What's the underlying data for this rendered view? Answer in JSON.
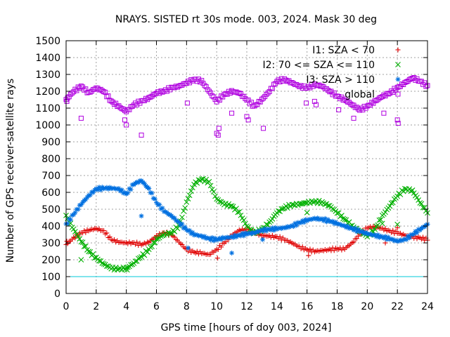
{
  "chart_data": {
    "type": "scatter",
    "title": "NRAYS. SISTED rt 30s mode. 003, 2024. Mask 30 deg",
    "xlabel": "GPS time [hours of doy 003, 2024]",
    "ylabel": "Number of GPS receiver-satellite rays",
    "xlim": [
      0,
      24
    ],
    "ylim": [
      0,
      1500
    ],
    "xticks": [
      "0",
      "2",
      "4",
      "6",
      "8",
      "10",
      "12",
      "14",
      "16",
      "18",
      "20",
      "22",
      "24"
    ],
    "yticks": [
      "0",
      "100",
      "200",
      "300",
      "400",
      "500",
      "600",
      "700",
      "800",
      "900",
      "1000",
      "1100",
      "1200",
      "1300",
      "1400",
      "1500"
    ],
    "grid": true,
    "legend_position": "top-right",
    "reference_line": {
      "y": 100,
      "color": "#00c8d8"
    },
    "series": [
      {
        "name": "I1: SZA < 70",
        "color": "#e00000",
        "marker": "+",
        "x": [
          0,
          0.5,
          1,
          1.5,
          2,
          2.5,
          3,
          3.5,
          4,
          4.5,
          5,
          5.5,
          6,
          6.5,
          7,
          7.5,
          8,
          8.5,
          9,
          9.5,
          10,
          10.5,
          11,
          11.5,
          12,
          12.5,
          13,
          13.5,
          14,
          14.5,
          15,
          15.5,
          16,
          16.5,
          17,
          17.5,
          18,
          18.5,
          19,
          19.5,
          20,
          20.5,
          21,
          21.5,
          22,
          22.5,
          23,
          23.5,
          24
        ],
        "y": [
          290,
          330,
          360,
          375,
          385,
          370,
          320,
          305,
          300,
          300,
          290,
          305,
          340,
          360,
          350,
          305,
          260,
          245,
          240,
          230,
          260,
          300,
          345,
          375,
          380,
          360,
          345,
          340,
          335,
          320,
          300,
          275,
          260,
          250,
          255,
          260,
          265,
          265,
          300,
          350,
          390,
          395,
          385,
          370,
          360,
          345,
          335,
          330,
          320
        ],
        "outliers_x": [
          0.05,
          10.05,
          16.1,
          21.2,
          22.0
        ],
        "outliers_y": [
          310,
          210,
          225,
          300,
          390
        ]
      },
      {
        "name": "I2: 70 <= SZA <= 110",
        "color": "#00b000",
        "marker": "x",
        "x": [
          0,
          0.5,
          1,
          1.5,
          2,
          2.5,
          3,
          3.5,
          4,
          4.5,
          5,
          5.5,
          6,
          6.5,
          7,
          7.5,
          8,
          8.5,
          9,
          9.5,
          10,
          10.5,
          11,
          11.5,
          12,
          12.5,
          13,
          13.5,
          14,
          14.5,
          15,
          15.5,
          16,
          16.5,
          17,
          17.5,
          18,
          18.5,
          19,
          19.5,
          20,
          20.5,
          21,
          21.5,
          22,
          22.5,
          23,
          23.5,
          24
        ],
        "y": [
          460,
          380,
          310,
          250,
          210,
          175,
          150,
          145,
          150,
          180,
          220,
          260,
          320,
          350,
          360,
          400,
          540,
          650,
          680,
          660,
          560,
          530,
          520,
          480,
          400,
          360,
          380,
          420,
          480,
          510,
          525,
          530,
          540,
          545,
          540,
          520,
          480,
          440,
          400,
          370,
          340,
          380,
          460,
          520,
          580,
          620,
          610,
          540,
          480
        ],
        "outliers_x": [
          1.0,
          4.05,
          16.0,
          21.0,
          22.0
        ],
        "outliers_y": [
          200,
          140,
          480,
          415,
          410
        ]
      },
      {
        "name": "I3: SZA > 110",
        "color": "#0070e0",
        "marker": "*",
        "x": [
          0,
          0.5,
          1,
          1.5,
          2,
          2.5,
          3,
          3.5,
          4,
          4.5,
          5,
          5.5,
          6,
          6.5,
          7,
          7.5,
          8,
          8.5,
          9,
          9.5,
          10,
          10.5,
          11,
          11.5,
          12,
          12.5,
          13,
          13.5,
          14,
          14.5,
          15,
          15.5,
          16,
          16.5,
          17,
          17.5,
          18,
          18.5,
          19,
          19.5,
          20,
          20.5,
          21,
          21.5,
          22,
          22.5,
          23,
          23.5,
          24
        ],
        "y": [
          410,
          470,
          530,
          580,
          620,
          625,
          625,
          620,
          590,
          650,
          670,
          620,
          540,
          490,
          460,
          420,
          380,
          350,
          340,
          325,
          320,
          330,
          335,
          345,
          355,
          360,
          375,
          380,
          385,
          390,
          400,
          420,
          435,
          445,
          440,
          430,
          415,
          400,
          385,
          370,
          355,
          345,
          335,
          325,
          310,
          320,
          350,
          380,
          410
        ],
        "outliers_x": [
          5.0,
          8.1,
          11.0,
          13.05
        ],
        "outliers_y": [
          460,
          270,
          240,
          320
        ]
      },
      {
        "name": "global",
        "color": "#b000e0",
        "marker": "square",
        "x": [
          0,
          0.5,
          1,
          1.5,
          2,
          2.5,
          3,
          3.5,
          4,
          4.5,
          5,
          5.5,
          6,
          6.5,
          7,
          7.5,
          8,
          8.5,
          9,
          9.5,
          10,
          10.5,
          11,
          11.5,
          12,
          12.5,
          13,
          13.5,
          14,
          14.5,
          15,
          15.5,
          16,
          16.5,
          17,
          17.5,
          18,
          18.5,
          19,
          19.5,
          20,
          20.5,
          21,
          21.5,
          22,
          22.5,
          23,
          23.5,
          24
        ],
        "y": [
          1150,
          1200,
          1230,
          1190,
          1220,
          1200,
          1140,
          1110,
          1080,
          1120,
          1140,
          1160,
          1190,
          1200,
          1220,
          1230,
          1250,
          1270,
          1260,
          1200,
          1140,
          1180,
          1200,
          1190,
          1150,
          1110,
          1150,
          1200,
          1260,
          1270,
          1250,
          1230,
          1220,
          1240,
          1230,
          1200,
          1170,
          1150,
          1120,
          1090,
          1110,
          1140,
          1170,
          1190,
          1220,
          1250,
          1280,
          1260,
          1230
        ],
        "outliers_x": [
          0.05,
          1.0,
          3.9,
          4.0,
          5.0,
          8.05,
          10.0,
          10.1,
          10.15,
          11.0,
          12.0,
          12.1,
          13.1,
          15.95,
          16.5,
          16.6,
          18.1,
          19.1,
          21.1,
          22.0,
          22.05
        ],
        "outliers_y": [
          1140,
          1040,
          1030,
          1000,
          940,
          1130,
          950,
          940,
          980,
          1070,
          1050,
          1030,
          980,
          1130,
          1140,
          1120,
          1090,
          1040,
          1070,
          1030,
          1010
        ]
      }
    ]
  }
}
